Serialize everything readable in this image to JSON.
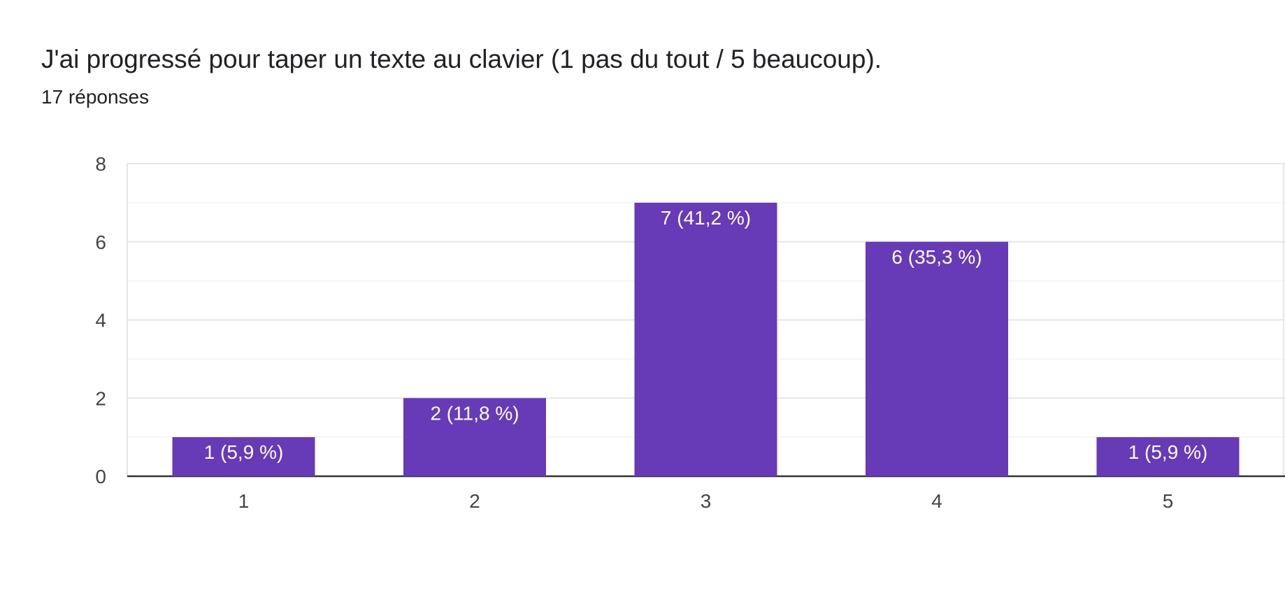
{
  "header": {
    "title": "J'ai progressé pour taper un texte au clavier (1 pas du tout / 5 beaucoup).",
    "subtitle": "17 réponses"
  },
  "colors": {
    "bar": "#673ab7",
    "grid_major": "#e6e6e6",
    "grid_minor": "#f3f3f3",
    "baseline": "#333333",
    "data_label": "#ffffff"
  },
  "chart_data": {
    "type": "bar",
    "categories": [
      "1",
      "2",
      "3",
      "4",
      "5"
    ],
    "values": [
      1,
      2,
      7,
      6,
      1
    ],
    "data_labels": [
      "1 (5,9 %)",
      "2 (11,8 %)",
      "7 (41,2 %)",
      "6 (35,3 %)",
      "1 (5,9 %)"
    ],
    "title": "J'ai progressé pour taper un texte au clavier (1 pas du tout / 5 beaucoup).",
    "subtitle": "17 réponses",
    "xlabel": "",
    "ylabel": "",
    "ylim": [
      0,
      8
    ],
    "yticks": [
      0,
      2,
      4,
      6,
      8
    ],
    "y_minor_gridlines": [
      1,
      3,
      5,
      7
    ],
    "grid": true,
    "legend": "none"
  }
}
